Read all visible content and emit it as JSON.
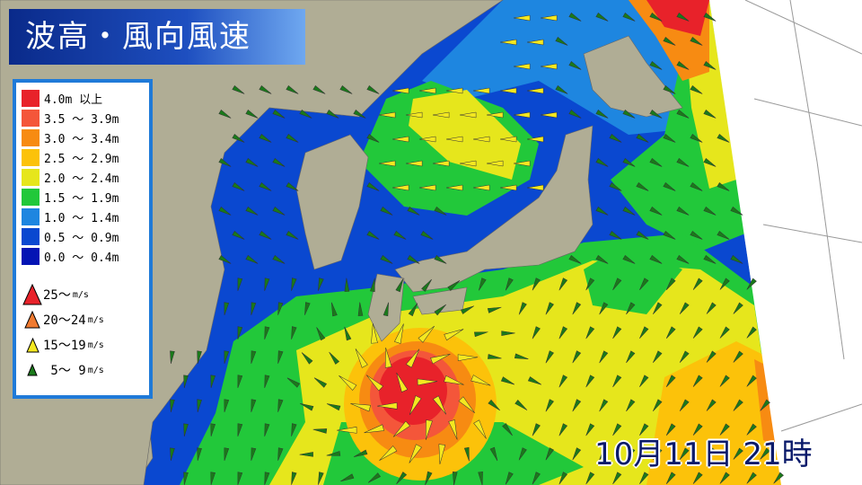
{
  "title": "波高・風向風速",
  "timestamp": "10月11日 21時",
  "legend": {
    "wave_height": [
      {
        "label": "4.0m 以上",
        "color": "#e8222a"
      },
      {
        "label": "3.5 ～ 3.9m",
        "color": "#f4563a"
      },
      {
        "label": "3.0 ～ 3.4m",
        "color": "#f78b12"
      },
      {
        "label": "2.5 ～ 2.9m",
        "color": "#fcc20a"
      },
      {
        "label": "2.0 ～ 2.4m",
        "color": "#e6e61c"
      },
      {
        "label": "1.5 ～ 1.9m",
        "color": "#22c83a"
      },
      {
        "label": "1.0 ～ 1.4m",
        "color": "#1e86e0"
      },
      {
        "label": "0.5 ～ 0.9m",
        "color": "#0a48d0"
      },
      {
        "label": "0.0 ～ 0.4m",
        "color": "#0414b4"
      }
    ],
    "wind_speed": [
      {
        "label": "25～",
        "unit": "m/s",
        "color": "#e8222a"
      },
      {
        "label": "20～24",
        "unit": "m/s",
        "color": "#f07a30"
      },
      {
        "label": "15～19",
        "unit": "m/s",
        "color": "#f4e820"
      },
      {
        "label": " 5～ 9",
        "unit": "m/s",
        "color": "#1a7a1a"
      }
    ]
  },
  "colors": {
    "land": "#b0ad95",
    "outside": "#ffffff",
    "grid": "#999999"
  }
}
